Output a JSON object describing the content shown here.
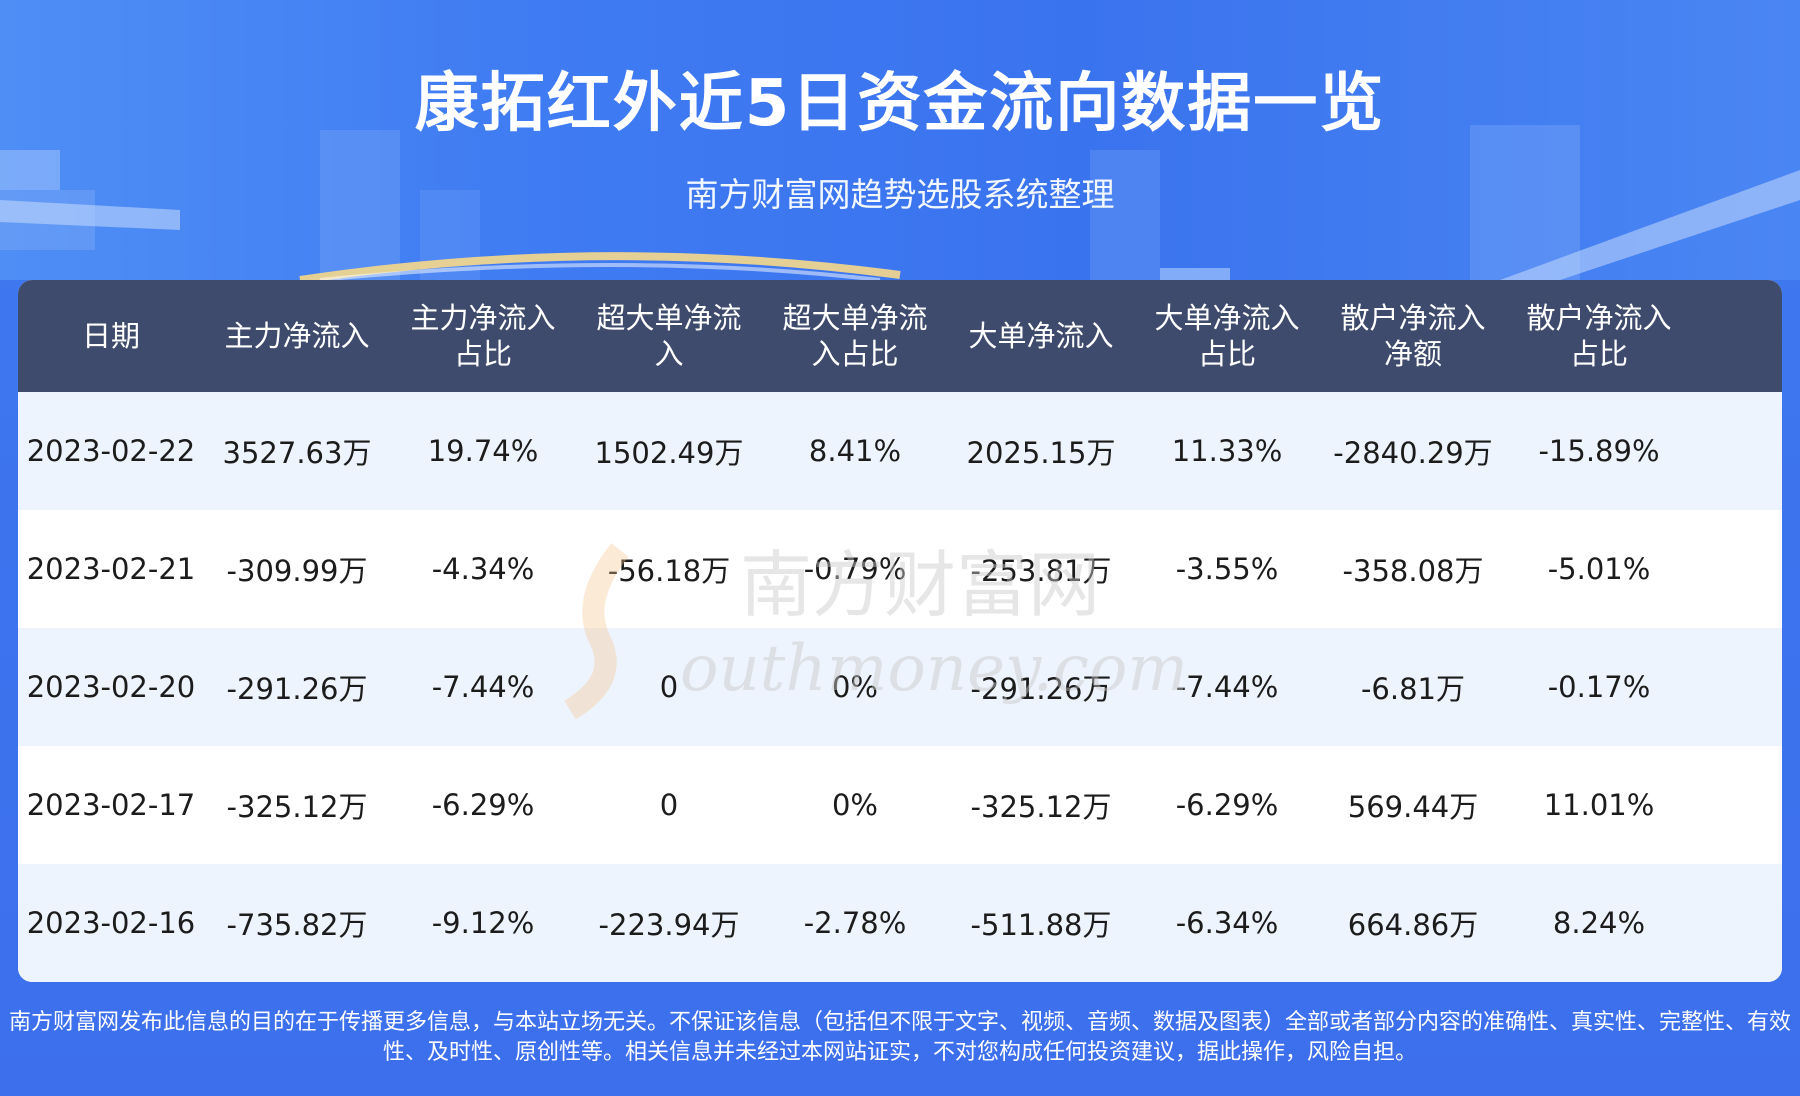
{
  "header": {
    "title": "康拓红外近5日资金流向数据一览",
    "subtitle": "南方财富网趋势选股系统整理"
  },
  "colors": {
    "background": "#3e7cf0",
    "table_header": "#3e4b6d",
    "row_alt": "#eef4fe",
    "row_plain": "#ffffff",
    "text": "#1c1c1c"
  },
  "watermark": {
    "cn": "南方财富网",
    "en": "outhmoney.com"
  },
  "chart_data": {
    "type": "table",
    "columns": [
      "日期",
      "主力净流入",
      "主力净流入\n占比",
      "超大单净流\n入",
      "超大单净流\n入占比",
      "大单净流入",
      "大单净流入\n占比",
      "散户净流入\n净额",
      "散户净流入\n占比"
    ],
    "rows": [
      [
        "2023-02-22",
        "3527.63万",
        "19.74%",
        "1502.49万",
        "8.41%",
        "2025.15万",
        "11.33%",
        "-2840.29万",
        "-15.89%"
      ],
      [
        "2023-02-21",
        "-309.99万",
        "-4.34%",
        "-56.18万",
        "-0.79%",
        "-253.81万",
        "-3.55%",
        "-358.08万",
        "-5.01%"
      ],
      [
        "2023-02-20",
        "-291.26万",
        "-7.44%",
        "0",
        "0%",
        "-291.26万",
        "-7.44%",
        "-6.81万",
        "-0.17%"
      ],
      [
        "2023-02-17",
        "-325.12万",
        "-6.29%",
        "0",
        "0%",
        "-325.12万",
        "-6.29%",
        "569.44万",
        "11.01%"
      ],
      [
        "2023-02-16",
        "-735.82万",
        "-9.12%",
        "-223.94万",
        "-2.78%",
        "-511.88万",
        "-6.34%",
        "664.86万",
        "8.24%"
      ]
    ]
  },
  "footer": {
    "disclaimer": "南方财富网发布此信息的目的在于传播更多信息，与本站立场无关。不保证该信息（包括但不限于文字、视频、音频、数据及图表）全部或者部分内容的准确性、真实性、完整性、有效性、及时性、原创性等。相关信息并未经过本网站证实，不对您构成任何投资建议，据此操作，风险自担。"
  }
}
